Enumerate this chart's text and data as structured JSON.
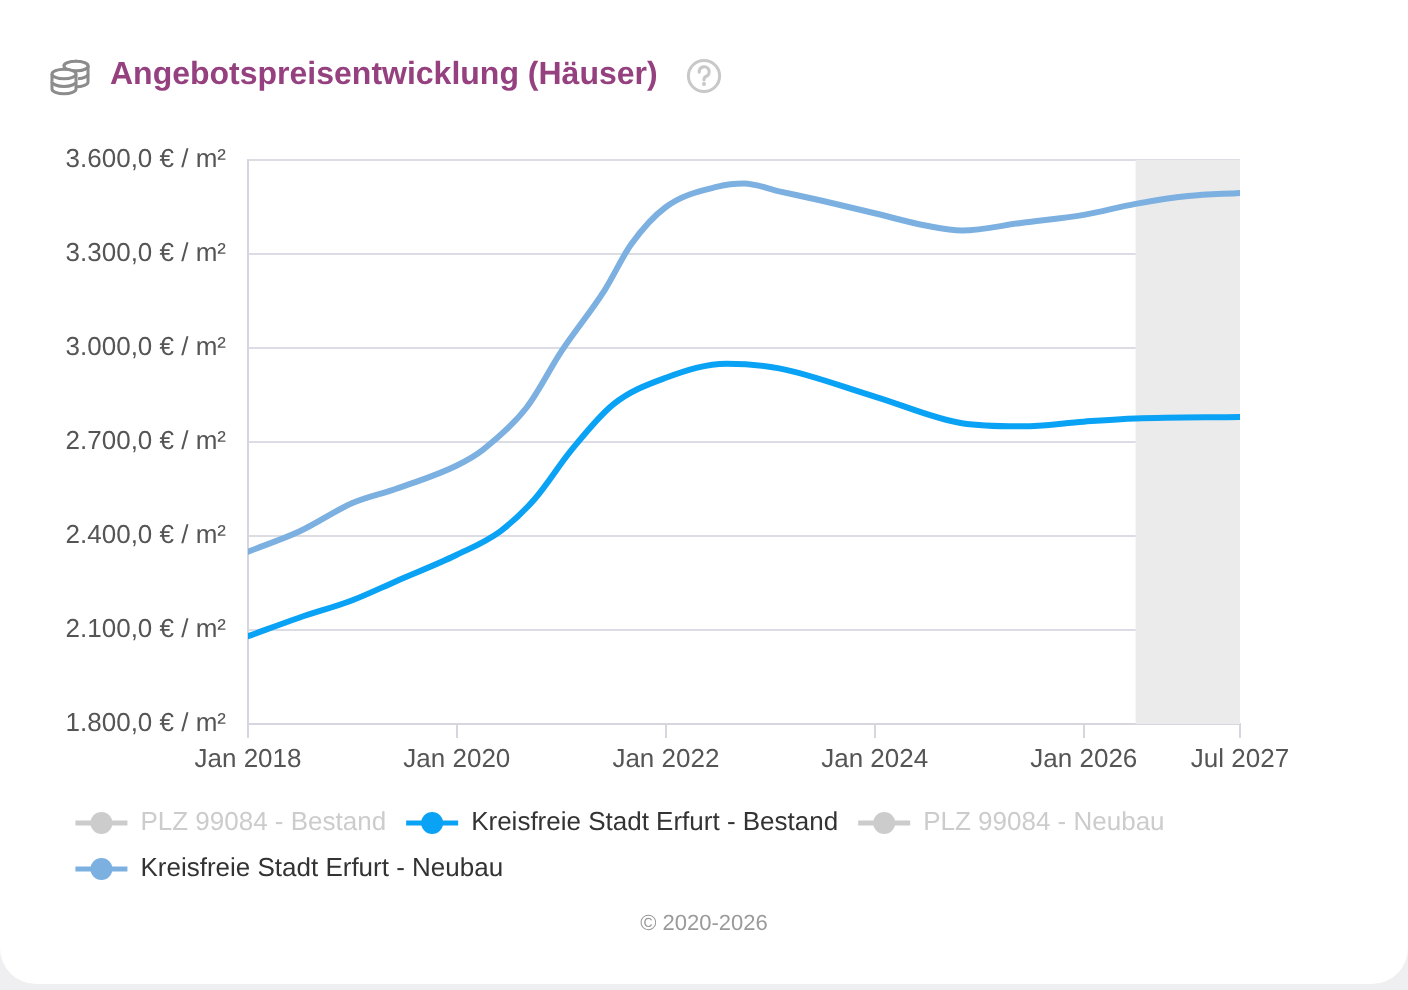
{
  "chart_data": {
    "type": "line",
    "title": "Angebotspreisentwicklung (Häuser)",
    "annotations": [
      "© 2020-2026"
    ],
    "xlim": [
      "2018-01",
      "2027-07"
    ],
    "xticks": [
      {
        "value": "2018-01",
        "label": "Jan 2018"
      },
      {
        "value": "2020-01",
        "label": "Jan 2020"
      },
      {
        "value": "2022-01",
        "label": "Jan 2022"
      },
      {
        "value": "2024-01",
        "label": "Jan 2024"
      },
      {
        "value": "2026-01",
        "label": "Jan 2026"
      },
      {
        "value": "2027-07",
        "label": "Jul 2027"
      }
    ],
    "ylim": [
      1800,
      3600
    ],
    "yticks": [
      {
        "value": 1800,
        "label": "1.800,0 € / m²"
      },
      {
        "value": 2100,
        "label": "2.100,0 € / m²"
      },
      {
        "value": 2400,
        "label": "2.400,0 € / m²"
      },
      {
        "value": 2700,
        "label": "2.700,0 € / m²"
      },
      {
        "value": 3000,
        "label": "3.000,0 € / m²"
      },
      {
        "value": 3300,
        "label": "3.300,0 € / m²"
      },
      {
        "value": 3600,
        "label": "3.600,0 € / m²"
      }
    ],
    "grid": "y",
    "legend": "bottom",
    "marker": "none",
    "line_style": "solid",
    "bands": [
      {
        "axis": "x",
        "from": "2026-07",
        "to": "2027-07",
        "color": "#ebebeb"
      }
    ],
    "series": [
      {
        "name": "PLZ 99084 - Bestand",
        "color": "#cccccc"
      },
      {
        "name": "Kreisfreie Stadt Erfurt - Bestand",
        "color": "#0aa2f5",
        "x": [
          "2018-01",
          "2018-07",
          "2019-01",
          "2019-06",
          "2020-01",
          "2020-06",
          "2020-10",
          "2021-02",
          "2021-07",
          "2022-01",
          "2022-08",
          "2023-02",
          "2024-01",
          "2024-11",
          "2025-06",
          "2026-01",
          "2026-07",
          "2027-07"
        ],
        "values": [
          2080,
          2140,
          2195,
          2255,
          2340,
          2415,
          2520,
          2670,
          2820,
          2905,
          2950,
          2935,
          2845,
          2760,
          2750,
          2765,
          2775,
          2780
        ]
      },
      {
        "name": "PLZ 99084 - Neubau",
        "color": "#cccccc"
      },
      {
        "name": "Kreisfreie Stadt Erfurt - Neubau",
        "color": "#7cb0e0",
        "x": [
          "2018-01",
          "2018-07",
          "2019-01",
          "2019-06",
          "2020-01",
          "2020-04",
          "2020-09",
          "2021-01",
          "2021-06",
          "2021-09",
          "2022-01",
          "2022-07",
          "2022-10",
          "2023-02",
          "2023-07",
          "2024-01",
          "2024-07",
          "2024-11",
          "2025-06",
          "2026-01",
          "2026-07",
          "2027-01",
          "2027-07"
        ],
        "values": [
          2350,
          2415,
          2505,
          2550,
          2625,
          2675,
          2810,
          2990,
          3185,
          3330,
          3450,
          3515,
          3525,
          3500,
          3470,
          3430,
          3390,
          3375,
          3400,
          3425,
          3460,
          3485,
          3495
        ]
      }
    ]
  }
}
